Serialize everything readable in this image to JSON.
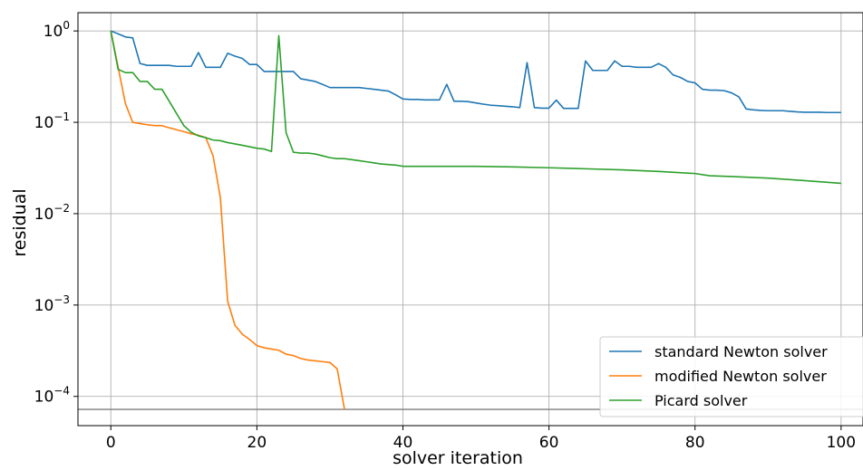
{
  "chart_data": {
    "type": "line",
    "xlabel": "solver iteration",
    "ylabel": "residual",
    "xlim": [
      -4.5,
      103
    ],
    "ylim_log10": [
      -4.32,
      0.2
    ],
    "y_scale": "log",
    "grid": true,
    "legend_position": "lower-right",
    "x_ticks": [
      0,
      20,
      40,
      60,
      80,
      100
    ],
    "y_ticks": [
      {
        "exp": 0,
        "base": "10",
        "sup": "0"
      },
      {
        "exp": -1,
        "base": "10",
        "sup": "−1"
      },
      {
        "exp": -2,
        "base": "10",
        "sup": "−2"
      },
      {
        "exp": -3,
        "base": "10",
        "sup": "−3"
      },
      {
        "exp": -4,
        "base": "10",
        "sup": "−4"
      }
    ],
    "reference_line_y": 7.2e-05,
    "series": [
      {
        "name": "standard Newton solver",
        "color": "#1f77b4",
        "points": [
          [
            0,
            1.0
          ],
          [
            1,
            0.93
          ],
          [
            2,
            0.86
          ],
          [
            3,
            0.84
          ],
          [
            4,
            0.44
          ],
          [
            5,
            0.42
          ],
          [
            6,
            0.42
          ],
          [
            7,
            0.42
          ],
          [
            8,
            0.42
          ],
          [
            9,
            0.41
          ],
          [
            10,
            0.41
          ],
          [
            11,
            0.41
          ],
          [
            12,
            0.58
          ],
          [
            13,
            0.4
          ],
          [
            14,
            0.4
          ],
          [
            15,
            0.4
          ],
          [
            16,
            0.57
          ],
          [
            17,
            0.53
          ],
          [
            18,
            0.5
          ],
          [
            19,
            0.43
          ],
          [
            20,
            0.43
          ],
          [
            21,
            0.36
          ],
          [
            22,
            0.36
          ],
          [
            23,
            0.36
          ],
          [
            24,
            0.36
          ],
          [
            25,
            0.36
          ],
          [
            26,
            0.3
          ],
          [
            27,
            0.29
          ],
          [
            28,
            0.28
          ],
          [
            29,
            0.26
          ],
          [
            30,
            0.24
          ],
          [
            31,
            0.24
          ],
          [
            32,
            0.24
          ],
          [
            33,
            0.24
          ],
          [
            34,
            0.24
          ],
          [
            35,
            0.235
          ],
          [
            36,
            0.23
          ],
          [
            37,
            0.225
          ],
          [
            38,
            0.22
          ],
          [
            39,
            0.2
          ],
          [
            40,
            0.18
          ],
          [
            41,
            0.178
          ],
          [
            42,
            0.178
          ],
          [
            43,
            0.176
          ],
          [
            44,
            0.176
          ],
          [
            45,
            0.176
          ],
          [
            46,
            0.26
          ],
          [
            47,
            0.17
          ],
          [
            48,
            0.17
          ],
          [
            49,
            0.168
          ],
          [
            50,
            0.163
          ],
          [
            51,
            0.158
          ],
          [
            52,
            0.154
          ],
          [
            53,
            0.152
          ],
          [
            54,
            0.15
          ],
          [
            55,
            0.148
          ],
          [
            56,
            0.145
          ],
          [
            57,
            0.45
          ],
          [
            58,
            0.145
          ],
          [
            59,
            0.143
          ],
          [
            60,
            0.143
          ],
          [
            61,
            0.175
          ],
          [
            62,
            0.142
          ],
          [
            63,
            0.142
          ],
          [
            64,
            0.142
          ],
          [
            65,
            0.47
          ],
          [
            66,
            0.37
          ],
          [
            67,
            0.37
          ],
          [
            68,
            0.37
          ],
          [
            69,
            0.47
          ],
          [
            70,
            0.41
          ],
          [
            71,
            0.41
          ],
          [
            72,
            0.4
          ],
          [
            73,
            0.4
          ],
          [
            74,
            0.4
          ],
          [
            75,
            0.44
          ],
          [
            76,
            0.4
          ],
          [
            77,
            0.33
          ],
          [
            78,
            0.31
          ],
          [
            79,
            0.28
          ],
          [
            80,
            0.27
          ],
          [
            81,
            0.23
          ],
          [
            82,
            0.225
          ],
          [
            83,
            0.225
          ],
          [
            84,
            0.222
          ],
          [
            85,
            0.21
          ],
          [
            86,
            0.19
          ],
          [
            87,
            0.14
          ],
          [
            88,
            0.137
          ],
          [
            89,
            0.135
          ],
          [
            90,
            0.134
          ],
          [
            91,
            0.134
          ],
          [
            92,
            0.134
          ],
          [
            93,
            0.132
          ],
          [
            94,
            0.13
          ],
          [
            95,
            0.129
          ],
          [
            96,
            0.129
          ],
          [
            97,
            0.129
          ],
          [
            98,
            0.128
          ],
          [
            99,
            0.128
          ],
          [
            100,
            0.128
          ]
        ]
      },
      {
        "name": "modified Newton solver",
        "color": "#ff7f0e",
        "points": [
          [
            0,
            1.0
          ],
          [
            1,
            0.4
          ],
          [
            2,
            0.16
          ],
          [
            3,
            0.1
          ],
          [
            4,
            0.097
          ],
          [
            5,
            0.094
          ],
          [
            6,
            0.092
          ],
          [
            7,
            0.092
          ],
          [
            8,
            0.087
          ],
          [
            9,
            0.083
          ],
          [
            10,
            0.079
          ],
          [
            11,
            0.075
          ],
          [
            12,
            0.072
          ],
          [
            13,
            0.068
          ],
          [
            14,
            0.043
          ],
          [
            15,
            0.015
          ],
          [
            16,
            0.0011
          ],
          [
            17,
            0.0006
          ],
          [
            18,
            0.00048
          ],
          [
            19,
            0.00042
          ],
          [
            20,
            0.00036
          ],
          [
            21,
            0.00034
          ],
          [
            22,
            0.00033
          ],
          [
            23,
            0.00032
          ],
          [
            24,
            0.00029
          ],
          [
            25,
            0.00028
          ],
          [
            26,
            0.00026
          ],
          [
            27,
            0.00025
          ],
          [
            28,
            0.000245
          ],
          [
            29,
            0.00024
          ],
          [
            30,
            0.000235
          ],
          [
            31,
            0.0002
          ],
          [
            32,
            7.2e-05
          ]
        ]
      },
      {
        "name": "Picard solver",
        "color": "#2ca02c",
        "points": [
          [
            0,
            1.0
          ],
          [
            1,
            0.38
          ],
          [
            2,
            0.35
          ],
          [
            3,
            0.35
          ],
          [
            4,
            0.28
          ],
          [
            5,
            0.28
          ],
          [
            6,
            0.23
          ],
          [
            7,
            0.23
          ],
          [
            8,
            0.17
          ],
          [
            9,
            0.125
          ],
          [
            10,
            0.092
          ],
          [
            11,
            0.078
          ],
          [
            12,
            0.071
          ],
          [
            13,
            0.068
          ],
          [
            14,
            0.064
          ],
          [
            15,
            0.063
          ],
          [
            16,
            0.06
          ],
          [
            17,
            0.058
          ],
          [
            18,
            0.056
          ],
          [
            19,
            0.054
          ],
          [
            20,
            0.052
          ],
          [
            21,
            0.051
          ],
          [
            22,
            0.048
          ],
          [
            23,
            0.89
          ],
          [
            24,
            0.077
          ],
          [
            25,
            0.047
          ],
          [
            26,
            0.046
          ],
          [
            27,
            0.046
          ],
          [
            28,
            0.045
          ],
          [
            29,
            0.043
          ],
          [
            30,
            0.041
          ],
          [
            31,
            0.04
          ],
          [
            32,
            0.04
          ],
          [
            33,
            0.039
          ],
          [
            34,
            0.038
          ],
          [
            35,
            0.037
          ],
          [
            36,
            0.036
          ],
          [
            37,
            0.035
          ],
          [
            38,
            0.0345
          ],
          [
            39,
            0.034
          ],
          [
            40,
            0.033
          ],
          [
            45,
            0.033
          ],
          [
            50,
            0.033
          ],
          [
            55,
            0.0325
          ],
          [
            60,
            0.0318
          ],
          [
            65,
            0.031
          ],
          [
            70,
            0.0302
          ],
          [
            75,
            0.029
          ],
          [
            80,
            0.0275
          ],
          [
            82,
            0.026
          ],
          [
            85,
            0.0255
          ],
          [
            90,
            0.0245
          ],
          [
            95,
            0.023
          ],
          [
            100,
            0.0215
          ]
        ]
      }
    ]
  }
}
